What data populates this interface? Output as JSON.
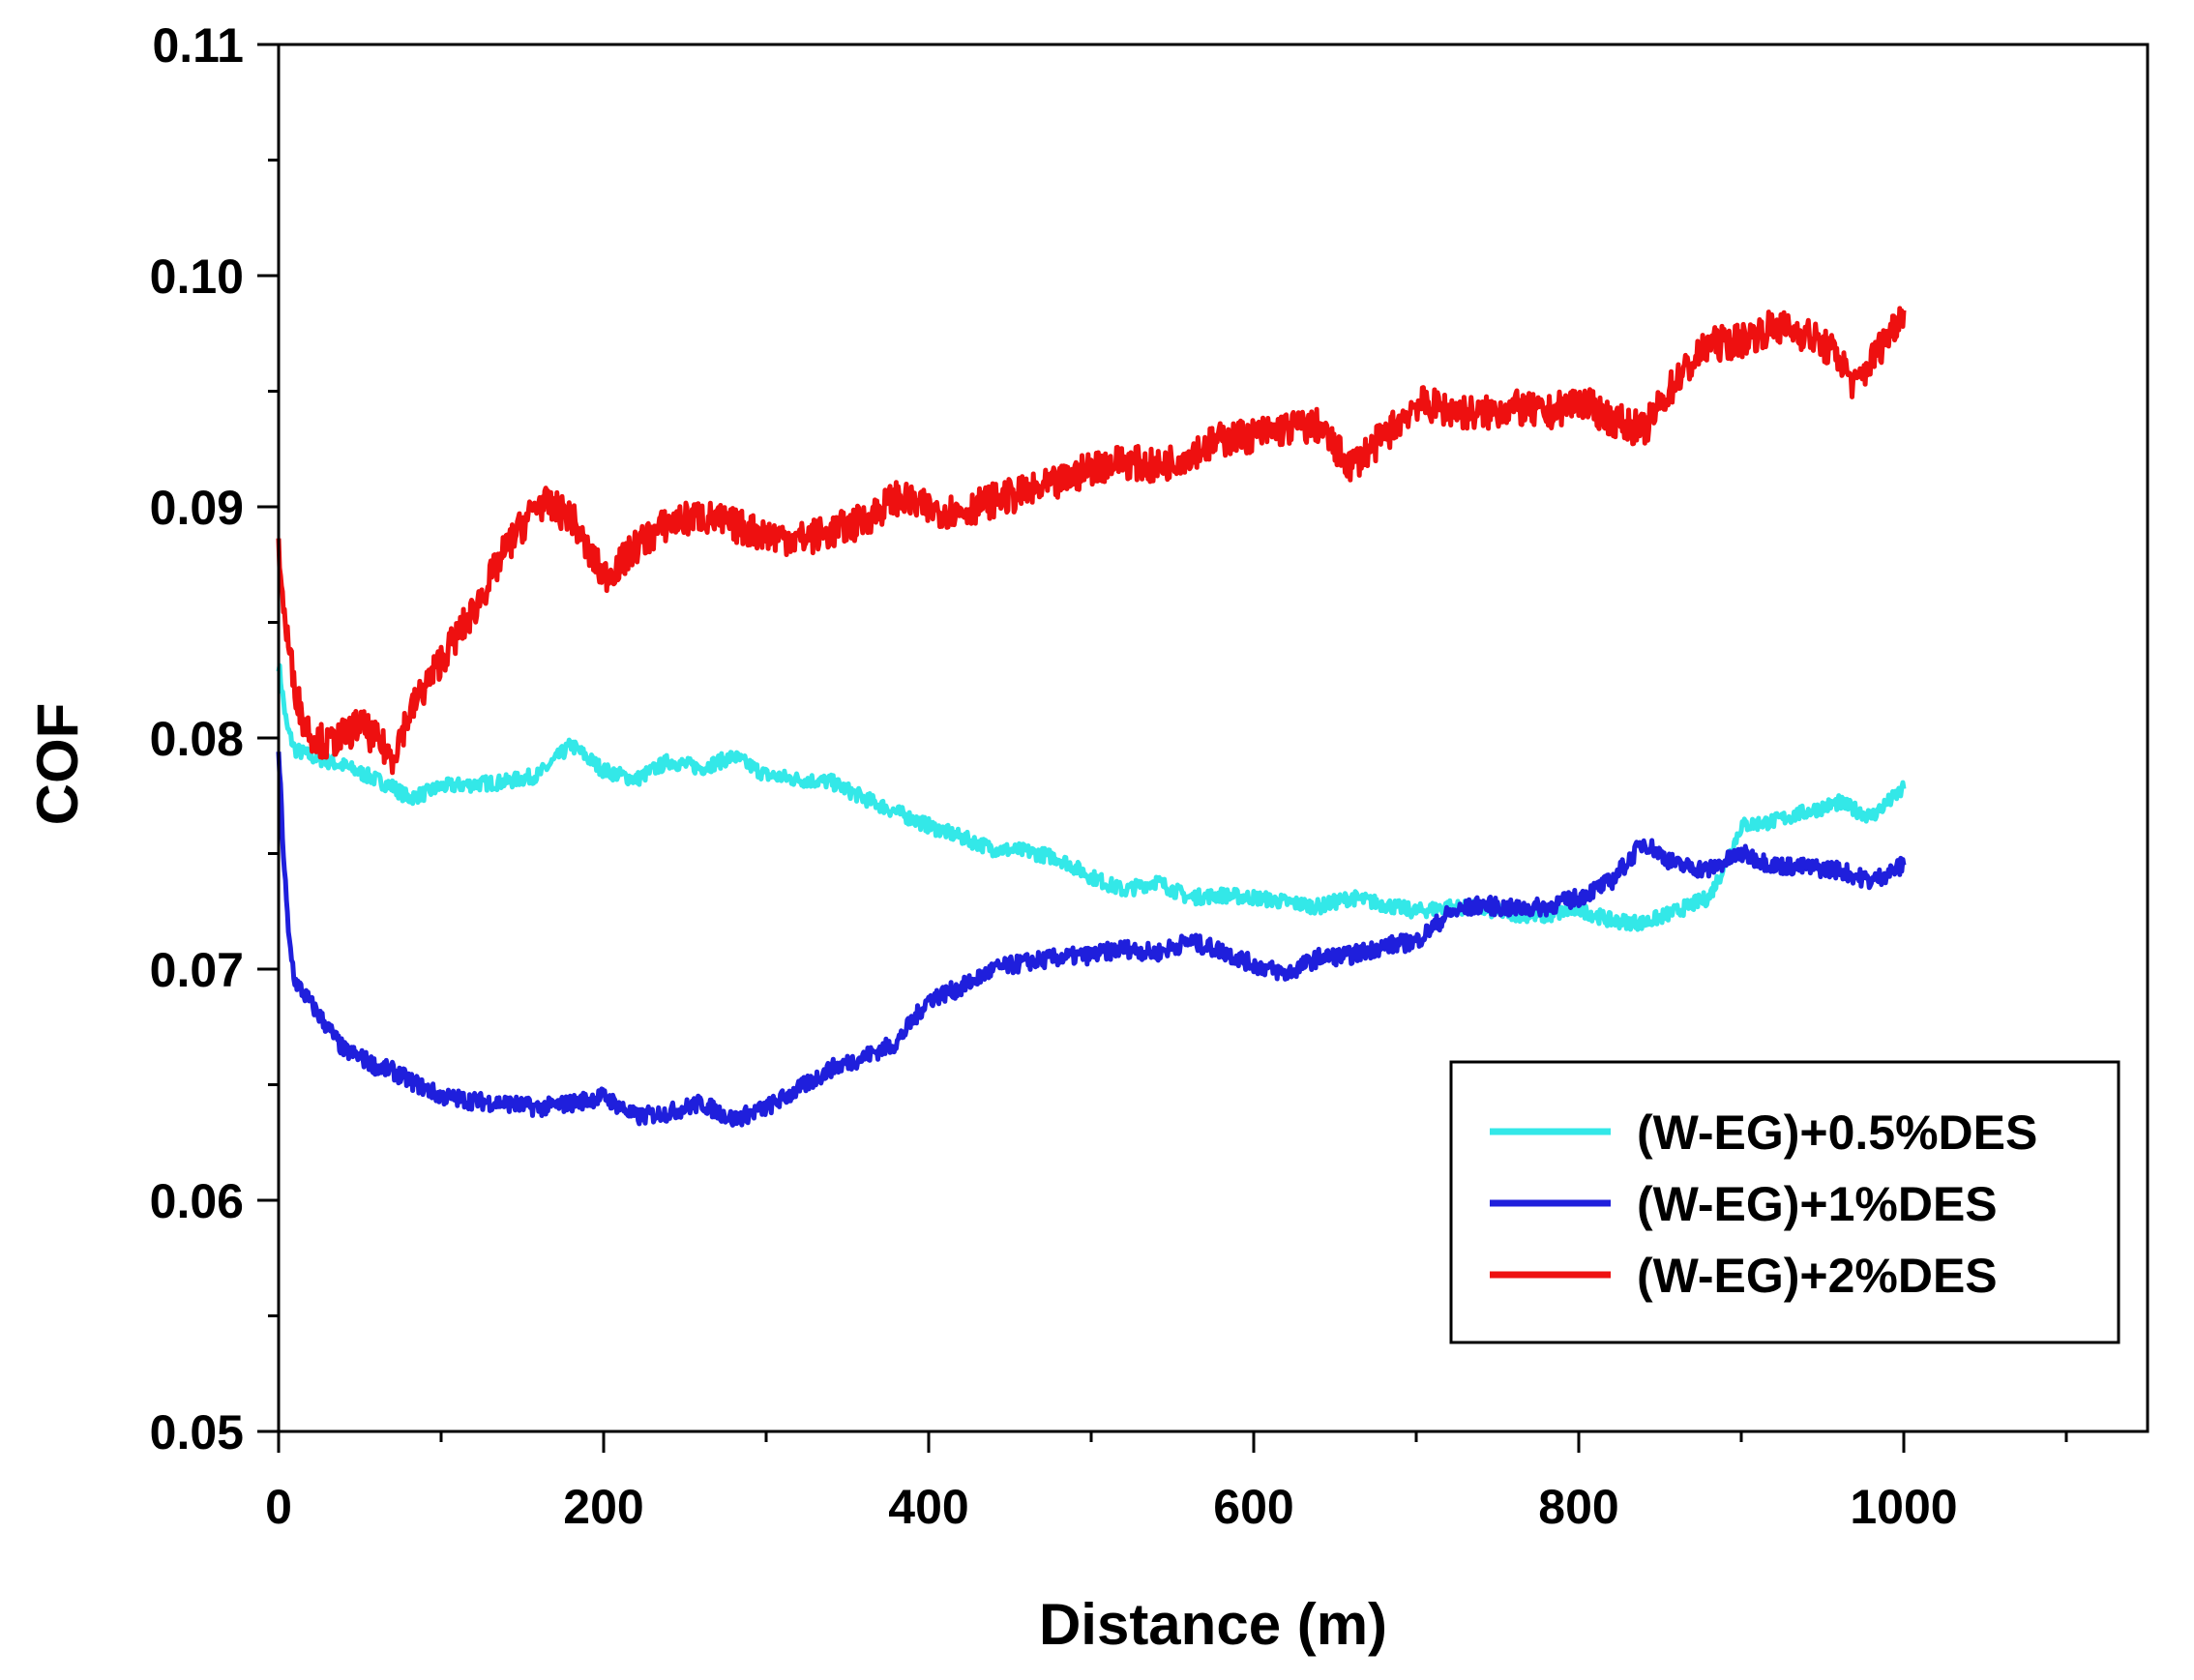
{
  "chart_data": {
    "type": "line",
    "title": "",
    "xlabel": "Distance (m)",
    "ylabel": "COF",
    "xlim": [
      0,
      1150
    ],
    "ylim": [
      0.05,
      0.11
    ],
    "grid": false,
    "legend_position": "bottom-right",
    "x_ticks": [
      0,
      200,
      400,
      600,
      800,
      1000
    ],
    "x_tick_labels": [
      "0",
      "200",
      "400",
      "600",
      "800",
      "1000"
    ],
    "y_ticks": [
      0.05,
      0.06,
      0.07,
      0.08,
      0.09,
      0.1,
      0.11
    ],
    "y_tick_labels": [
      "0.05",
      "0.06",
      "0.07",
      "0.08",
      "0.09",
      "0.10",
      "0.11"
    ],
    "series": [
      {
        "name": "(W-EG)+0.5%DES",
        "color": "#33e8e8",
        "x": [
          0,
          5,
          10,
          20,
          30,
          40,
          50,
          60,
          70,
          80,
          90,
          100,
          120,
          140,
          160,
          180,
          200,
          220,
          240,
          260,
          280,
          300,
          320,
          340,
          360,
          380,
          400,
          420,
          440,
          460,
          480,
          500,
          520,
          540,
          560,
          580,
          600,
          620,
          640,
          660,
          680,
          700,
          720,
          740,
          760,
          780,
          800,
          820,
          840,
          860,
          880,
          890,
          900,
          920,
          940,
          960,
          980,
          1000
        ],
        "y": [
          0.0832,
          0.0805,
          0.0795,
          0.0792,
          0.079,
          0.0788,
          0.0785,
          0.0782,
          0.0779,
          0.0774,
          0.0776,
          0.0779,
          0.078,
          0.0781,
          0.0784,
          0.0797,
          0.0786,
          0.0782,
          0.079,
          0.0787,
          0.0792,
          0.0784,
          0.0782,
          0.0781,
          0.0774,
          0.0768,
          0.0762,
          0.0757,
          0.0752,
          0.0751,
          0.0748,
          0.074,
          0.0734,
          0.0738,
          0.0731,
          0.0732,
          0.0731,
          0.0729,
          0.0727,
          0.0731,
          0.0728,
          0.0725,
          0.0727,
          0.0726,
          0.0724,
          0.0723,
          0.0726,
          0.0721,
          0.072,
          0.0725,
          0.0731,
          0.0745,
          0.0762,
          0.0764,
          0.0768,
          0.0772,
          0.0766,
          0.0778
        ]
      },
      {
        "name": "(W-EG)+1%DES",
        "color": "#1f1fdc",
        "x": [
          0,
          3,
          6,
          10,
          20,
          30,
          40,
          50,
          60,
          70,
          80,
          100,
          120,
          140,
          160,
          180,
          200,
          220,
          240,
          260,
          280,
          300,
          320,
          340,
          360,
          380,
          400,
          420,
          440,
          460,
          480,
          500,
          520,
          540,
          560,
          580,
          600,
          620,
          640,
          660,
          680,
          700,
          720,
          740,
          760,
          780,
          800,
          820,
          840,
          860,
          880,
          900,
          920,
          940,
          960,
          980,
          1000
        ],
        "y": [
          0.0795,
          0.075,
          0.0715,
          0.0695,
          0.0685,
          0.0675,
          0.0665,
          0.0662,
          0.0658,
          0.0656,
          0.0652,
          0.0645,
          0.0643,
          0.0642,
          0.064,
          0.0642,
          0.0645,
          0.0636,
          0.0638,
          0.0642,
          0.0635,
          0.064,
          0.0648,
          0.0657,
          0.0662,
          0.0668,
          0.0687,
          0.0692,
          0.07,
          0.0703,
          0.0705,
          0.0706,
          0.0709,
          0.0707,
          0.0712,
          0.0708,
          0.0702,
          0.0698,
          0.0705,
          0.0706,
          0.071,
          0.0712,
          0.0724,
          0.0728,
          0.0726,
          0.0727,
          0.0731,
          0.0738,
          0.0755,
          0.0745,
          0.0743,
          0.075,
          0.0745,
          0.0744,
          0.0743,
          0.0738,
          0.0745
        ]
      },
      {
        "name": "(W-EG)+2%DES",
        "color": "#ee1010",
        "x": [
          0,
          3,
          6,
          10,
          15,
          20,
          30,
          40,
          50,
          60,
          70,
          80,
          100,
          120,
          140,
          160,
          180,
          190,
          200,
          210,
          220,
          240,
          260,
          280,
          300,
          320,
          340,
          360,
          380,
          400,
          420,
          440,
          460,
          480,
          500,
          520,
          540,
          560,
          580,
          600,
          620,
          640,
          650,
          660,
          680,
          700,
          720,
          740,
          760,
          780,
          800,
          820,
          840,
          860,
          880,
          900,
          920,
          940,
          960,
          970,
          980,
          1000
        ],
        "y": [
          0.0885,
          0.0856,
          0.084,
          0.0822,
          0.0808,
          0.0802,
          0.0797,
          0.0801,
          0.0806,
          0.0799,
          0.0792,
          0.081,
          0.0834,
          0.0855,
          0.0882,
          0.0902,
          0.0896,
          0.0881,
          0.087,
          0.0875,
          0.0883,
          0.0893,
          0.0896,
          0.0892,
          0.0888,
          0.0886,
          0.0889,
          0.0894,
          0.0904,
          0.0899,
          0.0898,
          0.0903,
          0.0906,
          0.091,
          0.0917,
          0.092,
          0.0917,
          0.0923,
          0.0929,
          0.0931,
          0.0934,
          0.0935,
          0.0925,
          0.0918,
          0.093,
          0.0945,
          0.0942,
          0.094,
          0.0943,
          0.094,
          0.0946,
          0.0938,
          0.0933,
          0.0955,
          0.097,
          0.0972,
          0.0978,
          0.0975,
          0.0965,
          0.0952,
          0.0963,
          0.0985
        ]
      }
    ]
  }
}
